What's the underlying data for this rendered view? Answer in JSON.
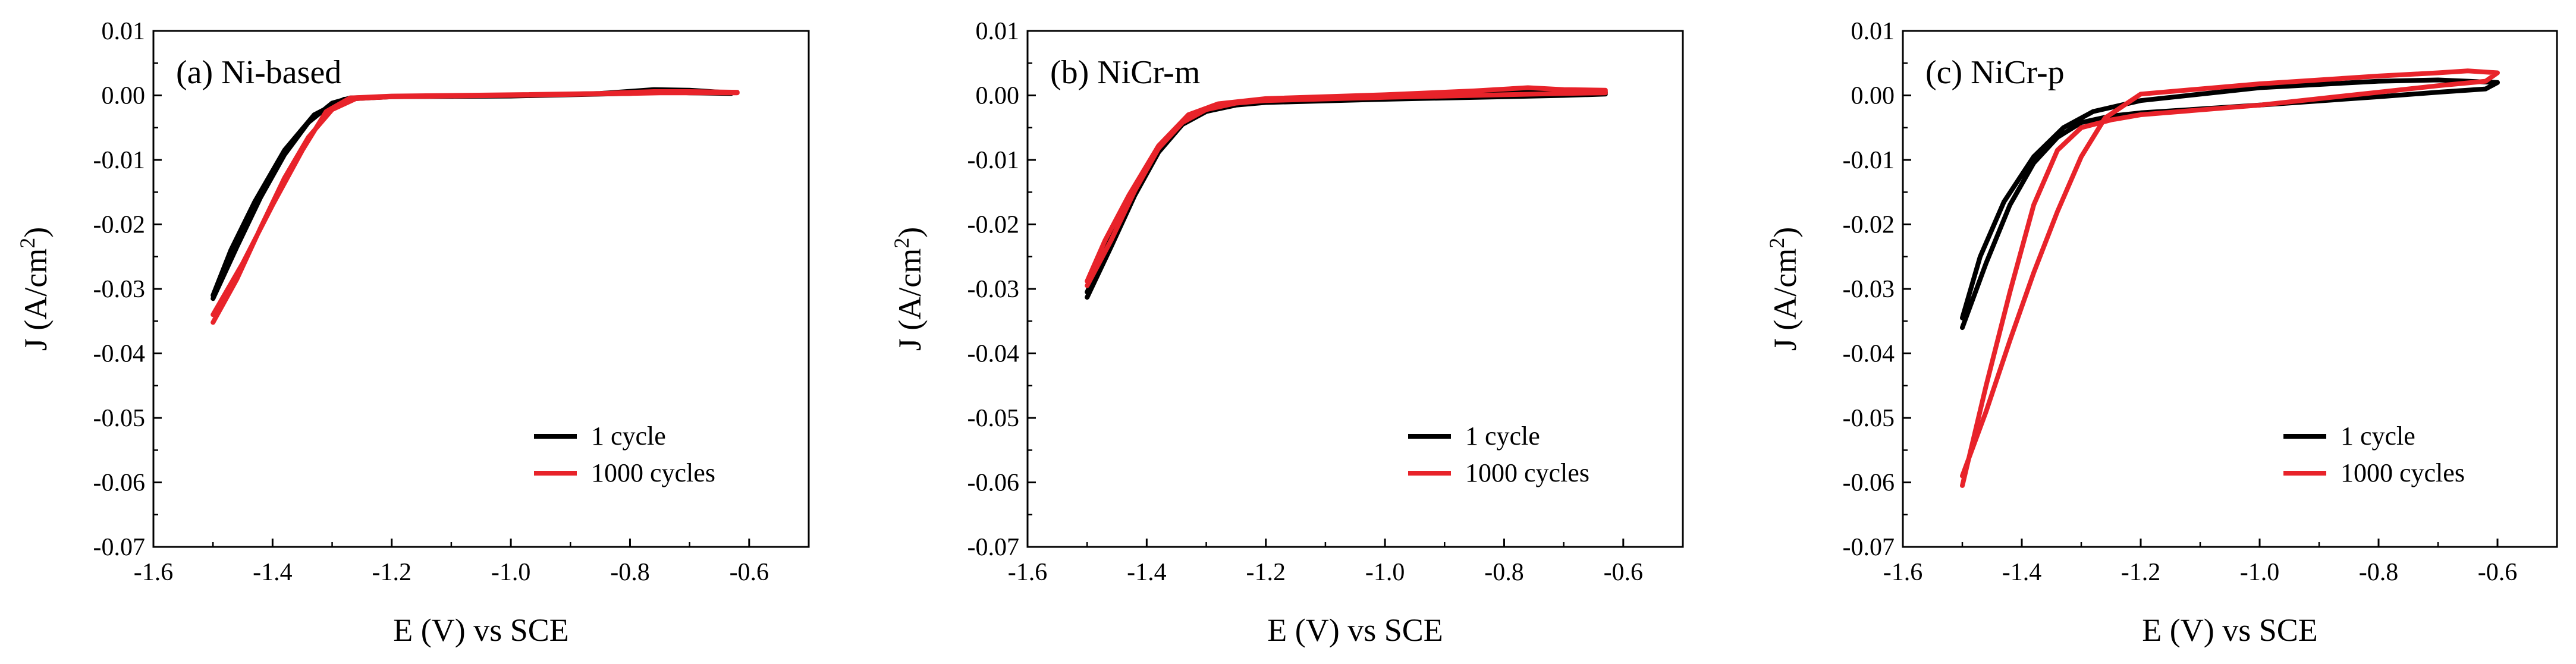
{
  "chart_data": [
    {
      "type": "line",
      "panel_label": "(a) Ni-based",
      "xlabel": "E (V) vs SCE",
      "ylabel_main": "J (A/cm",
      "ylabel_sup": "2",
      "ylabel_close": ")",
      "xlim": [
        -1.6,
        -0.5
      ],
      "ylim": [
        -0.07,
        0.01
      ],
      "xticks": [
        -1.6,
        -1.4,
        -1.2,
        -1.0,
        -0.8,
        -0.6
      ],
      "xtick_labels": [
        "-1.6",
        "-1.4",
        "-1.2",
        "-1.0",
        "-0.8",
        "-0.6"
      ],
      "yticks": [
        0.01,
        0.0,
        -0.01,
        -0.02,
        -0.03,
        -0.04,
        -0.05,
        -0.06,
        -0.07
      ],
      "ytick_labels": [
        "0.01",
        "0.00",
        "-0.01",
        "-0.02",
        "-0.03",
        "-0.04",
        "-0.05",
        "-0.06",
        "-0.07"
      ],
      "legend_position": "lower-right",
      "series": [
        {
          "name": "1 cycle",
          "color": "#000000",
          "forward": [
            [
              -1.5,
              -0.0315
            ],
            [
              -1.46,
              -0.0235
            ],
            [
              -1.42,
              -0.0158
            ],
            [
              -1.38,
              -0.0092
            ],
            [
              -1.34,
              -0.0042
            ],
            [
              -1.3,
              -0.0012
            ],
            [
              -1.27,
              -0.0004
            ],
            [
              -1.2,
              -0.0002
            ],
            [
              -1.0,
              -0.0001
            ],
            [
              -0.8,
              0.0003
            ],
            [
              -0.75,
              0.0006
            ],
            [
              -0.7,
              0.0004
            ],
            [
              -0.63,
              0.0003
            ]
          ],
          "reverse": [
            [
              -0.63,
              0.0004
            ],
            [
              -0.7,
              0.0008
            ],
            [
              -0.76,
              0.0009
            ],
            [
              -0.85,
              0.0003
            ],
            [
              -1.0,
              0.0
            ],
            [
              -1.2,
              -0.0002
            ],
            [
              -1.28,
              -0.0006
            ],
            [
              -1.33,
              -0.003
            ],
            [
              -1.38,
              -0.0085
            ],
            [
              -1.43,
              -0.0165
            ],
            [
              -1.47,
              -0.024
            ],
            [
              -1.5,
              -0.031
            ]
          ]
        },
        {
          "name": "1000 cycles",
          "color": "#e8232a",
          "forward": [
            [
              -1.5,
              -0.0352
            ],
            [
              -1.46,
              -0.0285
            ],
            [
              -1.42,
              -0.0205
            ],
            [
              -1.38,
              -0.0128
            ],
            [
              -1.34,
              -0.0065
            ],
            [
              -1.3,
              -0.0022
            ],
            [
              -1.26,
              -0.0005
            ],
            [
              -1.2,
              -0.0002
            ],
            [
              -1.0,
              0.0
            ],
            [
              -0.8,
              0.0003
            ],
            [
              -0.75,
              0.0004
            ],
            [
              -0.7,
              0.0004
            ],
            [
              -0.62,
              0.0004
            ]
          ],
          "reverse": [
            [
              -0.62,
              0.0005
            ],
            [
              -0.7,
              0.0006
            ],
            [
              -0.76,
              0.0006
            ],
            [
              -0.85,
              0.0003
            ],
            [
              -1.0,
              0.0001
            ],
            [
              -1.2,
              -0.0001
            ],
            [
              -1.27,
              -0.0004
            ],
            [
              -1.31,
              -0.0025
            ],
            [
              -1.35,
              -0.0085
            ],
            [
              -1.4,
              -0.017
            ],
            [
              -1.45,
              -0.026
            ],
            [
              -1.5,
              -0.034
            ]
          ]
        }
      ]
    },
    {
      "type": "line",
      "panel_label": "(b) NiCr-m",
      "xlabel": "E (V) vs SCE",
      "ylabel_main": "J (A/cm",
      "ylabel_sup": "2",
      "ylabel_close": ")",
      "xlim": [
        -1.6,
        -0.5
      ],
      "ylim": [
        -0.07,
        0.01
      ],
      "xticks": [
        -1.6,
        -1.4,
        -1.2,
        -1.0,
        -0.8,
        -0.6
      ],
      "xtick_labels": [
        "-1.6",
        "-1.4",
        "-1.2",
        "-1.0",
        "-0.8",
        "-0.6"
      ],
      "yticks": [
        0.01,
        0.0,
        -0.01,
        -0.02,
        -0.03,
        -0.04,
        -0.05,
        -0.06,
        -0.07
      ],
      "ytick_labels": [
        "0.01",
        "0.00",
        "-0.01",
        "-0.02",
        "-0.03",
        "-0.04",
        "-0.05",
        "-0.06",
        "-0.07"
      ],
      "legend_position": "lower-right",
      "series": [
        {
          "name": "1 cycle",
          "color": "#000000",
          "forward": [
            [
              -1.5,
              -0.0313
            ],
            [
              -1.46,
              -0.0235
            ],
            [
              -1.42,
              -0.0155
            ],
            [
              -1.38,
              -0.0088
            ],
            [
              -1.34,
              -0.0045
            ],
            [
              -1.3,
              -0.0025
            ],
            [
              -1.25,
              -0.0015
            ],
            [
              -1.2,
              -0.0011
            ],
            [
              -1.0,
              -0.0006
            ],
            [
              -0.8,
              -0.0002
            ],
            [
              -0.7,
              0.0
            ],
            [
              -0.63,
              0.0002
            ]
          ],
          "reverse": [
            [
              -0.63,
              0.0005
            ],
            [
              -0.7,
              0.0006
            ],
            [
              -0.76,
              0.0008
            ],
            [
              -0.85,
              0.0004
            ],
            [
              -1.0,
              -0.0002
            ],
            [
              -1.2,
              -0.0008
            ],
            [
              -1.28,
              -0.0016
            ],
            [
              -1.33,
              -0.0035
            ],
            [
              -1.38,
              -0.0085
            ],
            [
              -1.43,
              -0.0165
            ],
            [
              -1.47,
              -0.024
            ],
            [
              -1.5,
              -0.0305
            ]
          ]
        },
        {
          "name": "1000 cycles",
          "color": "#e8232a",
          "forward": [
            [
              -1.5,
              -0.0295
            ],
            [
              -1.46,
              -0.0225
            ],
            [
              -1.42,
              -0.0148
            ],
            [
              -1.38,
              -0.0082
            ],
            [
              -1.34,
              -0.0042
            ],
            [
              -1.3,
              -0.0022
            ],
            [
              -1.25,
              -0.0012
            ],
            [
              -1.2,
              -0.0008
            ],
            [
              -1.0,
              -0.0003
            ],
            [
              -0.8,
              0.0001
            ],
            [
              -0.7,
              0.0003
            ],
            [
              -0.63,
              0.0004
            ]
          ],
          "reverse": [
            [
              -0.63,
              0.0008
            ],
            [
              -0.7,
              0.0009
            ],
            [
              -0.76,
              0.0012
            ],
            [
              -0.85,
              0.0007
            ],
            [
              -1.0,
              0.0001
            ],
            [
              -1.2,
              -0.0005
            ],
            [
              -1.28,
              -0.0013
            ],
            [
              -1.33,
              -0.003
            ],
            [
              -1.38,
              -0.0078
            ],
            [
              -1.43,
              -0.0155
            ],
            [
              -1.47,
              -0.0225
            ],
            [
              -1.5,
              -0.0288
            ]
          ]
        }
      ]
    },
    {
      "type": "line",
      "panel_label": "(c) NiCr-p",
      "xlabel": "E (V) vs SCE",
      "ylabel_main": "J (A/cm",
      "ylabel_sup": "2",
      "ylabel_close": ")",
      "xlim": [
        -1.6,
        -0.5
      ],
      "ylim": [
        -0.07,
        0.01
      ],
      "xticks": [
        -1.6,
        -1.4,
        -1.2,
        -1.0,
        -0.8,
        -0.6
      ],
      "xtick_labels": [
        "-1.6",
        "-1.4",
        "-1.2",
        "-1.0",
        "-0.8",
        "-0.6"
      ],
      "yticks": [
        0.01,
        0.0,
        -0.01,
        -0.02,
        -0.03,
        -0.04,
        -0.05,
        -0.06,
        -0.07
      ],
      "ytick_labels": [
        "0.01",
        "0.00",
        "-0.01",
        "-0.02",
        "-0.03",
        "-0.04",
        "-0.05",
        "-0.06",
        "-0.07"
      ],
      "legend_position": "lower-right",
      "series": [
        {
          "name": "1 cycle",
          "color": "#000000",
          "forward": [
            [
              -1.5,
              -0.036
            ],
            [
              -1.46,
              -0.026
            ],
            [
              -1.42,
              -0.017
            ],
            [
              -1.38,
              -0.0105
            ],
            [
              -1.34,
              -0.0065
            ],
            [
              -1.3,
              -0.0042
            ],
            [
              -1.25,
              -0.0032
            ],
            [
              -1.2,
              -0.0027
            ],
            [
              -1.0,
              -0.0015
            ],
            [
              -0.8,
              -0.0002
            ],
            [
              -0.7,
              0.0005
            ],
            [
              -0.62,
              0.001
            ]
          ],
          "reverse": [
            [
              -0.6,
              0.002
            ],
            [
              -0.65,
              0.0022
            ],
            [
              -0.7,
              0.0024
            ],
            [
              -0.8,
              0.0022
            ],
            [
              -1.0,
              0.0012
            ],
            [
              -1.2,
              -0.0008
            ],
            [
              -1.28,
              -0.0025
            ],
            [
              -1.33,
              -0.005
            ],
            [
              -1.38,
              -0.0095
            ],
            [
              -1.43,
              -0.0165
            ],
            [
              -1.47,
              -0.025
            ],
            [
              -1.5,
              -0.0345
            ]
          ]
        },
        {
          "name": "1000 cycles",
          "color": "#e8232a",
          "forward": [
            [
              -1.5,
              -0.0605
            ],
            [
              -1.46,
              -0.045
            ],
            [
              -1.42,
              -0.0305
            ],
            [
              -1.38,
              -0.017
            ],
            [
              -1.34,
              -0.0085
            ],
            [
              -1.3,
              -0.005
            ],
            [
              -1.25,
              -0.0038
            ],
            [
              -1.2,
              -0.003
            ],
            [
              -1.0,
              -0.0015
            ],
            [
              -0.8,
              0.0005
            ],
            [
              -0.7,
              0.0015
            ],
            [
              -0.62,
              0.0022
            ]
          ],
          "reverse": [
            [
              -0.6,
              0.0035
            ],
            [
              -0.65,
              0.0038
            ],
            [
              -0.7,
              0.0035
            ],
            [
              -0.8,
              0.003
            ],
            [
              -1.0,
              0.0018
            ],
            [
              -1.2,
              0.0002
            ],
            [
              -1.26,
              -0.0035
            ],
            [
              -1.3,
              -0.0095
            ],
            [
              -1.34,
              -0.018
            ],
            [
              -1.38,
              -0.0275
            ],
            [
              -1.42,
              -0.038
            ],
            [
              -1.46,
              -0.049
            ],
            [
              -1.5,
              -0.059
            ]
          ]
        }
      ]
    }
  ]
}
